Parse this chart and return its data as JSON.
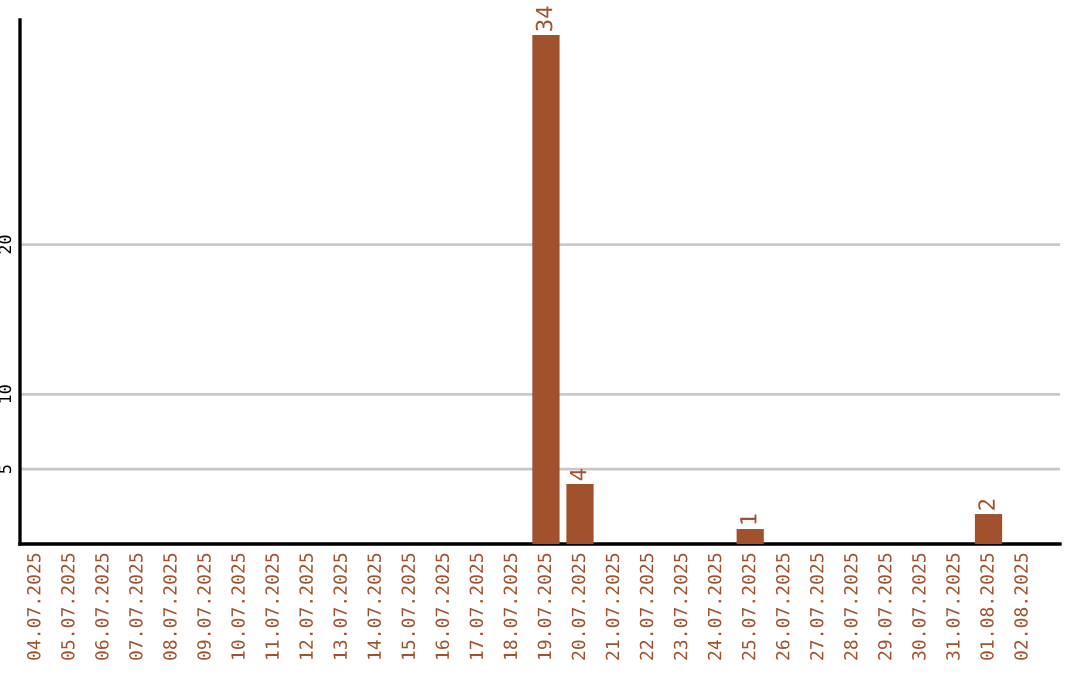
{
  "chart_data": {
    "type": "bar",
    "categories": [
      "04.07.2025",
      "05.07.2025",
      "06.07.2025",
      "07.07.2025",
      "08.07.2025",
      "09.07.2025",
      "10.07.2025",
      "11.07.2025",
      "12.07.2025",
      "13.07.2025",
      "14.07.2025",
      "15.07.2025",
      "16.07.2025",
      "17.07.2025",
      "18.07.2025",
      "19.07.2025",
      "20.07.2025",
      "21.07.2025",
      "22.07.2025",
      "23.07.2025",
      "24.07.2025",
      "25.07.2025",
      "26.07.2025",
      "27.07.2025",
      "28.07.2025",
      "29.07.2025",
      "30.07.2025",
      "31.07.2025",
      "01.08.2025",
      "02.08.2025"
    ],
    "values": [
      0,
      0,
      0,
      0,
      0,
      0,
      0,
      0,
      0,
      0,
      0,
      0,
      0,
      0,
      0,
      34,
      4,
      0,
      0,
      0,
      0,
      1,
      0,
      0,
      0,
      0,
      0,
      0,
      2,
      0
    ],
    "value_labels": [
      null,
      null,
      null,
      null,
      null,
      null,
      null,
      null,
      null,
      null,
      null,
      null,
      null,
      null,
      null,
      "34",
      "4",
      null,
      null,
      null,
      null,
      "1",
      null,
      null,
      null,
      null,
      null,
      null,
      "2",
      null
    ],
    "color": "#a0522d",
    "ylim": [
      0,
      35
    ],
    "yticks": [
      5,
      10,
      20
    ],
    "grid": "y",
    "legend": false
  }
}
